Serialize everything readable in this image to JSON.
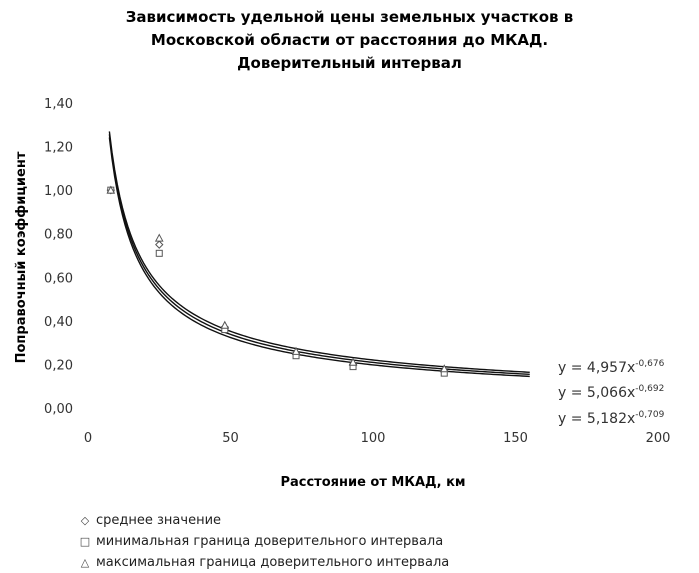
{
  "chart_data": {
    "type": "scatter",
    "title_lines": [
      "Зависимость удельной цены земельных участков в",
      "Московской области от расстояния до МКАД.",
      "Доверительный интервал"
    ],
    "xlabel": "Расстояние от МКАД, км",
    "ylabel": "Поправочный коэффициент",
    "xlim": [
      0,
      200
    ],
    "ylim": [
      0,
      1.4
    ],
    "x_ticks": [
      0,
      50,
      100,
      150,
      200
    ],
    "x_tick_labels": [
      "0",
      "50",
      "100",
      "150",
      "200"
    ],
    "y_ticks": [
      0,
      0.2,
      0.4,
      0.6,
      0.8,
      1.0,
      1.2,
      1.4
    ],
    "y_tick_labels": [
      "0,00",
      "0,20",
      "0,40",
      "0,60",
      "0,80",
      "1,00",
      "1,20",
      "1,40"
    ],
    "grid": false,
    "legend_position": "bottom",
    "series": [
      {
        "name": "среднее значение",
        "marker": "diamond",
        "points": [
          [
            8,
            1.0
          ],
          [
            25,
            0.75
          ],
          [
            48,
            0.37
          ],
          [
            73,
            0.25
          ],
          [
            93,
            0.2
          ],
          [
            125,
            0.17
          ]
        ]
      },
      {
        "name": "минимальная граница доверительного интервала",
        "marker": "square",
        "points": [
          [
            8,
            1.0
          ],
          [
            25,
            0.71
          ],
          [
            48,
            0.36
          ],
          [
            73,
            0.24
          ],
          [
            93,
            0.19
          ],
          [
            125,
            0.16
          ]
        ]
      },
      {
        "name": "максимальная граница доверительного интервала",
        "marker": "triangle",
        "points": [
          [
            8,
            1.0
          ],
          [
            25,
            0.78
          ],
          [
            48,
            0.38
          ],
          [
            73,
            0.26
          ],
          [
            93,
            0.21
          ],
          [
            125,
            0.18
          ]
        ]
      }
    ],
    "trendlines": [
      {
        "a": 4.957,
        "b": -0.676,
        "x_range": [
          7.5,
          155
        ],
        "equation_base": "y = 4,957x",
        "equation_exp": "-0,676"
      },
      {
        "a": 5.066,
        "b": -0.692,
        "x_range": [
          7.5,
          155
        ],
        "equation_base": "y = 5,066x",
        "equation_exp": "-0,692"
      },
      {
        "a": 5.182,
        "b": -0.709,
        "x_range": [
          7.5,
          155
        ],
        "equation_base": "y = 5,182x",
        "equation_exp": "-0,709"
      }
    ]
  }
}
